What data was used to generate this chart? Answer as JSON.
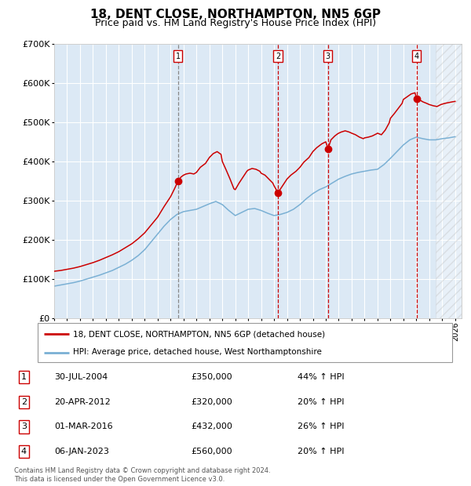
{
  "title": "18, DENT CLOSE, NORTHAMPTON, NN5 6GP",
  "subtitle": "Price paid vs. HM Land Registry's House Price Index (HPI)",
  "title_fontsize": 11,
  "subtitle_fontsize": 9,
  "bg_color": "#dce9f5",
  "hatch_region_start": 2024.5,
  "xmin": 1995,
  "xmax": 2026.5,
  "ymin": 0,
  "ymax": 700000,
  "yticks": [
    0,
    100000,
    200000,
    300000,
    400000,
    500000,
    600000,
    700000
  ],
  "red_line_color": "#cc0000",
  "blue_line_color": "#7ab0d4",
  "sale_marker_color": "#cc0000",
  "legend_label_red": "18, DENT CLOSE, NORTHAMPTON, NN5 6GP (detached house)",
  "legend_label_blue": "HPI: Average price, detached house, West Northamptonshire",
  "footer_text": "Contains HM Land Registry data © Crown copyright and database right 2024.\nThis data is licensed under the Open Government Licence v3.0.",
  "sales": [
    {
      "num": 1,
      "date_x": 2004.58,
      "price": 350000,
      "label_date": "30-JUL-2004",
      "label_price": "£350,000",
      "label_pct": "44% ↑ HPI",
      "vline_color": "#888888"
    },
    {
      "num": 2,
      "date_x": 2012.3,
      "price": 320000,
      "label_date": "20-APR-2012",
      "label_price": "£320,000",
      "label_pct": "20% ↑ HPI",
      "vline_color": "#cc0000"
    },
    {
      "num": 3,
      "date_x": 2016.17,
      "price": 432000,
      "label_date": "01-MAR-2016",
      "label_price": "£432,000",
      "label_pct": "26% ↑ HPI",
      "vline_color": "#cc0000"
    },
    {
      "num": 4,
      "date_x": 2023.02,
      "price": 560000,
      "label_date": "06-JAN-2023",
      "label_price": "£560,000",
      "label_pct": "20% ↑ HPI",
      "vline_color": "#cc0000"
    }
  ],
  "red_hpi_data": [
    [
      1995.0,
      120000
    ],
    [
      1995.5,
      122000
    ],
    [
      1996.0,
      125000
    ],
    [
      1996.5,
      128000
    ],
    [
      1997.0,
      132000
    ],
    [
      1997.5,
      137000
    ],
    [
      1998.0,
      142000
    ],
    [
      1998.5,
      148000
    ],
    [
      1999.0,
      155000
    ],
    [
      1999.5,
      162000
    ],
    [
      2000.0,
      170000
    ],
    [
      2000.5,
      180000
    ],
    [
      2001.0,
      190000
    ],
    [
      2001.5,
      203000
    ],
    [
      2002.0,
      218000
    ],
    [
      2002.5,
      238000
    ],
    [
      2003.0,
      258000
    ],
    [
      2003.5,
      285000
    ],
    [
      2004.0,
      310000
    ],
    [
      2004.3,
      330000
    ],
    [
      2004.58,
      350000
    ],
    [
      2004.8,
      360000
    ],
    [
      2005.0,
      365000
    ],
    [
      2005.2,
      368000
    ],
    [
      2005.5,
      370000
    ],
    [
      2005.8,
      368000
    ],
    [
      2006.0,
      372000
    ],
    [
      2006.3,
      385000
    ],
    [
      2006.7,
      395000
    ],
    [
      2007.0,
      410000
    ],
    [
      2007.3,
      420000
    ],
    [
      2007.6,
      425000
    ],
    [
      2007.9,
      418000
    ],
    [
      2008.0,
      400000
    ],
    [
      2008.3,
      378000
    ],
    [
      2008.6,
      355000
    ],
    [
      2008.9,
      330000
    ],
    [
      2009.0,
      328000
    ],
    [
      2009.3,
      345000
    ],
    [
      2009.6,
      360000
    ],
    [
      2009.9,
      375000
    ],
    [
      2010.0,
      378000
    ],
    [
      2010.3,
      382000
    ],
    [
      2010.6,
      380000
    ],
    [
      2010.9,
      375000
    ],
    [
      2011.0,
      370000
    ],
    [
      2011.3,
      365000
    ],
    [
      2011.6,
      355000
    ],
    [
      2011.9,
      345000
    ],
    [
      2012.0,
      338000
    ],
    [
      2012.3,
      320000
    ],
    [
      2012.5,
      330000
    ],
    [
      2012.8,
      345000
    ],
    [
      2013.0,
      355000
    ],
    [
      2013.3,
      365000
    ],
    [
      2013.7,
      375000
    ],
    [
      2014.0,
      385000
    ],
    [
      2014.3,
      398000
    ],
    [
      2014.7,
      410000
    ],
    [
      2015.0,
      425000
    ],
    [
      2015.3,
      435000
    ],
    [
      2015.7,
      445000
    ],
    [
      2016.0,
      450000
    ],
    [
      2016.17,
      432000
    ],
    [
      2016.4,
      455000
    ],
    [
      2016.7,
      465000
    ],
    [
      2016.9,
      470000
    ],
    [
      2017.0,
      472000
    ],
    [
      2017.2,
      475000
    ],
    [
      2017.5,
      478000
    ],
    [
      2017.8,
      475000
    ],
    [
      2018.0,
      472000
    ],
    [
      2018.3,
      468000
    ],
    [
      2018.6,
      462000
    ],
    [
      2018.9,
      458000
    ],
    [
      2019.0,
      460000
    ],
    [
      2019.3,
      462000
    ],
    [
      2019.6,
      465000
    ],
    [
      2019.9,
      470000
    ],
    [
      2020.0,
      472000
    ],
    [
      2020.3,
      468000
    ],
    [
      2020.6,
      480000
    ],
    [
      2020.9,
      498000
    ],
    [
      2021.0,
      510000
    ],
    [
      2021.3,
      522000
    ],
    [
      2021.6,
      535000
    ],
    [
      2021.9,
      548000
    ],
    [
      2022.0,
      558000
    ],
    [
      2022.3,
      565000
    ],
    [
      2022.6,
      572000
    ],
    [
      2022.9,
      575000
    ],
    [
      2023.02,
      560000
    ],
    [
      2023.2,
      558000
    ],
    [
      2023.5,
      552000
    ],
    [
      2023.8,
      548000
    ],
    [
      2024.0,
      545000
    ],
    [
      2024.3,
      542000
    ],
    [
      2024.6,
      540000
    ],
    [
      2024.9,
      545000
    ],
    [
      2025.2,
      548000
    ],
    [
      2025.5,
      550000
    ],
    [
      2025.8,
      552000
    ],
    [
      2026.0,
      553000
    ]
  ],
  "blue_hpi_data": [
    [
      1995.0,
      82000
    ],
    [
      1995.5,
      85000
    ],
    [
      1996.0,
      88000
    ],
    [
      1996.5,
      91000
    ],
    [
      1997.0,
      95000
    ],
    [
      1997.5,
      100000
    ],
    [
      1998.0,
      105000
    ],
    [
      1998.5,
      110000
    ],
    [
      1999.0,
      116000
    ],
    [
      1999.5,
      122000
    ],
    [
      2000.0,
      130000
    ],
    [
      2000.5,
      138000
    ],
    [
      2001.0,
      148000
    ],
    [
      2001.5,
      160000
    ],
    [
      2002.0,
      175000
    ],
    [
      2002.5,
      195000
    ],
    [
      2003.0,
      215000
    ],
    [
      2003.5,
      235000
    ],
    [
      2004.0,
      252000
    ],
    [
      2004.5,
      265000
    ],
    [
      2005.0,
      272000
    ],
    [
      2005.5,
      275000
    ],
    [
      2006.0,
      278000
    ],
    [
      2006.5,
      285000
    ],
    [
      2007.0,
      292000
    ],
    [
      2007.5,
      298000
    ],
    [
      2008.0,
      290000
    ],
    [
      2008.5,
      275000
    ],
    [
      2009.0,
      262000
    ],
    [
      2009.5,
      270000
    ],
    [
      2010.0,
      278000
    ],
    [
      2010.5,
      280000
    ],
    [
      2011.0,
      275000
    ],
    [
      2011.5,
      268000
    ],
    [
      2012.0,
      262000
    ],
    [
      2012.5,
      265000
    ],
    [
      2013.0,
      270000
    ],
    [
      2013.5,
      278000
    ],
    [
      2014.0,
      290000
    ],
    [
      2014.5,
      305000
    ],
    [
      2015.0,
      318000
    ],
    [
      2015.5,
      328000
    ],
    [
      2016.0,
      335000
    ],
    [
      2016.5,
      345000
    ],
    [
      2017.0,
      355000
    ],
    [
      2017.5,
      362000
    ],
    [
      2018.0,
      368000
    ],
    [
      2018.5,
      372000
    ],
    [
      2019.0,
      375000
    ],
    [
      2019.5,
      378000
    ],
    [
      2020.0,
      380000
    ],
    [
      2020.5,
      392000
    ],
    [
      2021.0,
      408000
    ],
    [
      2021.5,
      425000
    ],
    [
      2022.0,
      442000
    ],
    [
      2022.5,
      455000
    ],
    [
      2023.0,
      462000
    ],
    [
      2023.5,
      458000
    ],
    [
      2024.0,
      455000
    ],
    [
      2024.5,
      455000
    ],
    [
      2025.0,
      458000
    ],
    [
      2025.5,
      460000
    ],
    [
      2026.0,
      463000
    ]
  ]
}
